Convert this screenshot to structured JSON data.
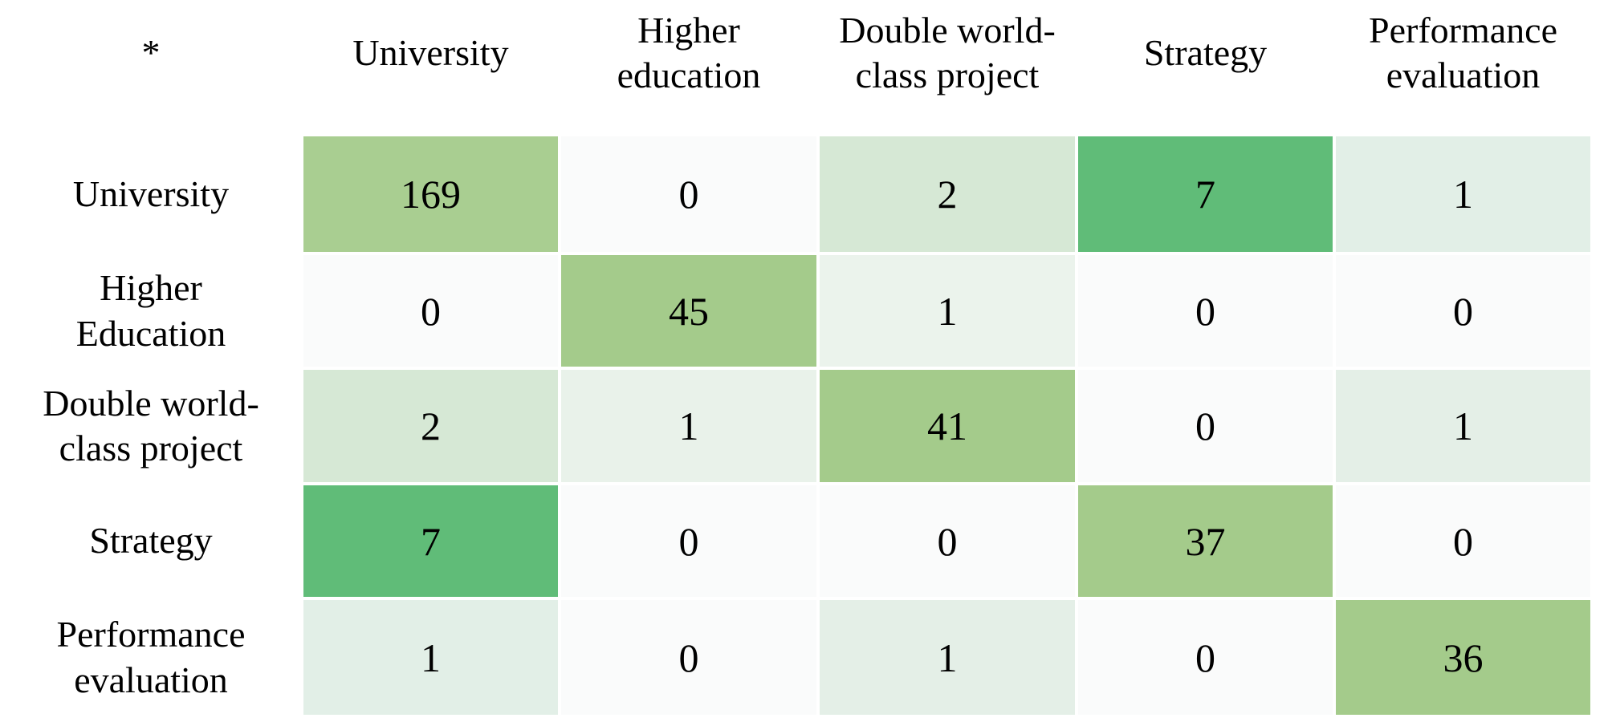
{
  "corner_label": "*",
  "columns": [
    {
      "name": "university",
      "text": "University"
    },
    {
      "name": "higher-education",
      "text": "Higher\neducation"
    },
    {
      "name": "double-world-class-project",
      "text": "Double world-\nclass project"
    },
    {
      "name": "strategy",
      "text": "Strategy"
    },
    {
      "name": "performance-evaluation",
      "text": "Performance\nevaluation"
    }
  ],
  "rows": [
    {
      "name": "university",
      "label": "University",
      "values": [
        169,
        0,
        2,
        7,
        1
      ],
      "colors": [
        "#a9ce91",
        "#fafbfb",
        "#d6e8d5",
        "#60bc78",
        "#e2efe7"
      ]
    },
    {
      "name": "higher-education",
      "label": "Higher\nEducation",
      "values": [
        0,
        45,
        1,
        0,
        0
      ],
      "colors": [
        "#fafbfb",
        "#a4cb8b",
        "#ebf3ec",
        "#fafbfb",
        "#fafbfb"
      ]
    },
    {
      "name": "double-world-class-project",
      "label": "Double world-\nclass project",
      "values": [
        2,
        1,
        41,
        0,
        1
      ],
      "colors": [
        "#d6e8d5",
        "#e9f2ea",
        "#a4cb8b",
        "#fafbfb",
        "#e4efe7"
      ]
    },
    {
      "name": "strategy",
      "label": "Strategy",
      "values": [
        7,
        0,
        0,
        37,
        0
      ],
      "colors": [
        "#60bc78",
        "#fafbfb",
        "#fafbfb",
        "#a4cb8b",
        "#fafbfb"
      ]
    },
    {
      "name": "performance-evaluation",
      "label": "Performance\nevaluation",
      "values": [
        1,
        0,
        1,
        0,
        36
      ],
      "colors": [
        "#e2efe7",
        "#fafbfb",
        "#e4efe7",
        "#fafbfb",
        "#a4cb8b"
      ]
    }
  ],
  "chart_data": {
    "type": "heatmap",
    "title": "",
    "corner_label": "*",
    "x_labels": [
      "University",
      "Higher education",
      "Double world-class project",
      "Strategy",
      "Performance evaluation"
    ],
    "y_labels": [
      "University",
      "Higher Education",
      "Double world-class project",
      "Strategy",
      "Performance evaluation"
    ],
    "matrix": [
      [
        169,
        0,
        2,
        7,
        1
      ],
      [
        0,
        45,
        1,
        0,
        0
      ],
      [
        2,
        1,
        41,
        0,
        1
      ],
      [
        7,
        0,
        0,
        37,
        0
      ],
      [
        1,
        0,
        1,
        0,
        36
      ]
    ],
    "colormap": "white-to-green",
    "value_color_notes": {
      "diagonal_high": "#a4cb8b",
      "university-strategy-pair": "#60bc78",
      "low_values": "#e4efe7",
      "zero": "#fafbfb"
    },
    "legend": "none",
    "grid": "off"
  }
}
